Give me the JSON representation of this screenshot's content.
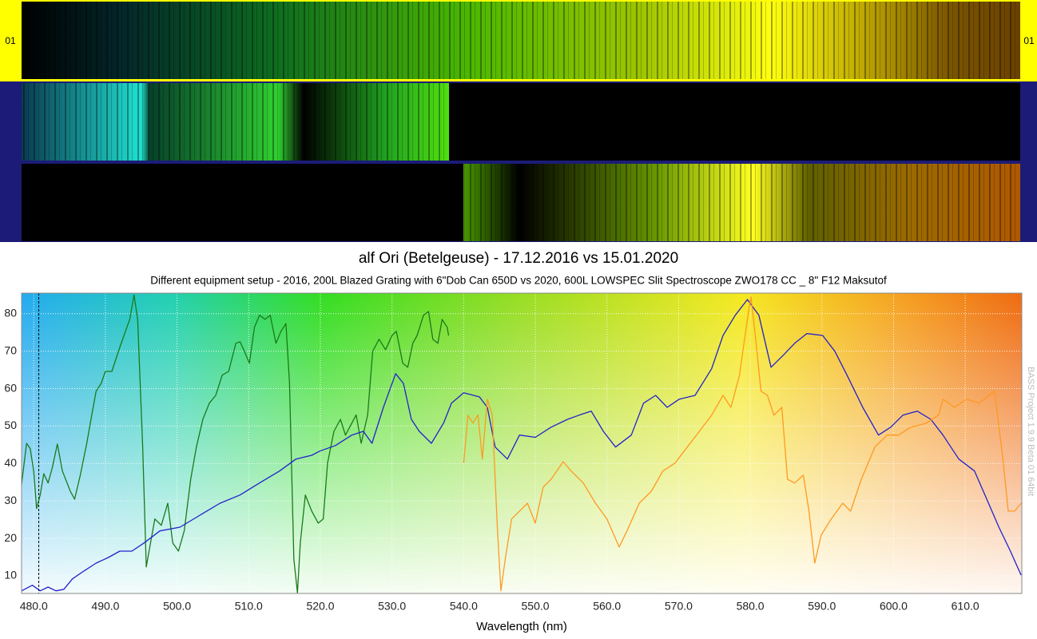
{
  "strip_label": "01",
  "watermark": "BASS Project 1.9.9 Beta 01 64bit",
  "chart_data": {
    "type": "line",
    "title": "alf Ori (Betelgeuse)  - 17.12.2016 vs 15.01.2020",
    "subtitle": "Different equipment setup - 2016, 200L Blazed Grating with 6\"Dob  Can 650D vs 2020, 600L LOWSPEC Slit Spectroscope  ZWO178 CC _ 8\" F12 Maksutof",
    "x_label": "Wavelength (nm)",
    "xlim": [
      478.3,
      617.9
    ],
    "ylim": [
      5.3,
      85.5
    ],
    "xticks": [
      {
        "value": 480,
        "label": "480.0"
      },
      {
        "value": 490,
        "label": "490.0"
      },
      {
        "value": 500,
        "label": "500.0"
      },
      {
        "value": 510,
        "label": "510.0"
      },
      {
        "value": 520,
        "label": "520.0"
      },
      {
        "value": 530,
        "label": "530.0"
      },
      {
        "value": 540,
        "label": "540.0"
      },
      {
        "value": 550,
        "label": "550.0"
      },
      {
        "value": 560,
        "label": "560.0"
      },
      {
        "value": 570,
        "label": "570.0"
      },
      {
        "value": 580,
        "label": "580.0"
      },
      {
        "value": 590,
        "label": "590.0"
      },
      {
        "value": 600,
        "label": "600.0"
      },
      {
        "value": 610,
        "label": "610.0"
      }
    ],
    "yticks": [
      10,
      20,
      30,
      40,
      50,
      60,
      70,
      80
    ],
    "grid": true,
    "vline_x": 480.7,
    "series": [
      {
        "color": "#1a7a1a",
        "x": [
          478.3,
          479,
          479.5,
          480,
          480.4,
          480.9,
          481.4,
          482,
          482.6,
          483.3,
          484,
          485.1,
          485.7,
          486.5,
          487.4,
          488.1,
          488.7,
          489.4,
          490,
          490.9,
          492,
          492.6,
          493.4,
          494,
          494.5,
          495.2,
          495.7,
          496.3,
          496.9,
          497.8,
          498.7,
          499.4,
          500.2,
          501,
          501.9,
          502.7,
          503.6,
          504.5,
          505.4,
          506.3,
          507.2,
          508.2,
          508.8,
          509.4,
          510.1,
          510.8,
          511.5,
          512.3,
          513,
          513.8,
          514.5,
          515.2,
          515.7,
          516.3,
          516.8,
          517.2,
          517.9,
          518.8,
          519.7,
          520.4,
          521,
          521.9,
          522.8,
          523.5,
          524.4,
          525,
          525.7,
          526.6,
          527.3,
          528.2,
          529.1,
          530,
          530.6,
          531.5,
          532.2,
          532.9,
          533.5,
          534.4,
          535.1,
          535.7,
          536.4,
          537,
          537.7,
          537.9
        ],
        "values": [
          34.5,
          45.4,
          44,
          38,
          28,
          31.6,
          37.3,
          34.8,
          39,
          45.2,
          38,
          32.6,
          30.5,
          36.9,
          45.4,
          53,
          59.3,
          61.4,
          64.6,
          64.6,
          71,
          74.2,
          78.5,
          85,
          78.5,
          44.4,
          12.4,
          18.8,
          25.2,
          23.5,
          29.4,
          18.8,
          16.6,
          22,
          35.8,
          44.4,
          51.8,
          56.1,
          58.2,
          63.6,
          64.6,
          72.1,
          72.5,
          70,
          66.8,
          76.4,
          79.6,
          78.5,
          79.6,
          72.1,
          75.3,
          77.4,
          61.4,
          14.5,
          5.5,
          18.8,
          31.6,
          27.3,
          24.1,
          25.2,
          40.1,
          48.6,
          51.8,
          47.6,
          50.8,
          53,
          45.4,
          53,
          70,
          73.2,
          70.4,
          74.2,
          75.3,
          66.8,
          65.7,
          72.1,
          74.2,
          79.6,
          80.6,
          73.2,
          72.1,
          78.5,
          76.4,
          74.2
        ]
      },
      {
        "color": "#2222cc",
        "x": [
          478.3,
          479.8,
          480.9,
          482,
          483.1,
          484.2,
          485.4,
          487,
          488.7,
          490.4,
          492,
          493.7,
          495.4,
          497.6,
          500.4,
          503.2,
          506,
          508.8,
          511.5,
          514.3,
          516.6,
          518.8,
          519.9,
          522.1,
          524.4,
          526,
          527.2,
          528.8,
          530.5,
          531.6,
          532.7,
          533.8,
          535.5,
          537.2,
          538.3,
          540,
          542.2,
          543.3,
          544.4,
          546.1,
          547.8,
          550,
          552.2,
          554.5,
          556.1,
          557.8,
          559.5,
          561.2,
          563.4,
          565.1,
          566.8,
          568.4,
          570.1,
          572.3,
          574.6,
          576.2,
          577.9,
          579.6,
          581.2,
          582.9,
          584.6,
          586.2,
          587.9,
          590.1,
          591.8,
          593.5,
          595.7,
          597.9,
          599.6,
          601.3,
          603.3,
          605.2,
          606.9,
          609.1,
          611.3,
          613,
          614.7,
          616.3,
          617.8
        ],
        "values": [
          6,
          7.5,
          6,
          7,
          6,
          6.4,
          9.2,
          11.3,
          13.4,
          14.9,
          16.6,
          16.6,
          18.8,
          22,
          23,
          26.2,
          29.4,
          31.6,
          34.8,
          38,
          41.2,
          42.2,
          43.3,
          44.8,
          47.6,
          48.6,
          45.4,
          55,
          64,
          61.4,
          51.8,
          48.6,
          45.4,
          50.8,
          56.1,
          58.9,
          57.8,
          55,
          44.4,
          41.2,
          47.6,
          47,
          49.7,
          51.8,
          52.9,
          54,
          48.6,
          44.4,
          47.6,
          56.1,
          58.2,
          55,
          57.2,
          58.2,
          65.3,
          74.2,
          79.6,
          83.8,
          79.6,
          65.7,
          68.9,
          72.1,
          74.7,
          74.2,
          70,
          63.6,
          55,
          47.6,
          49.7,
          52.9,
          54,
          51.8,
          47.6,
          41.2,
          38,
          30.5,
          23,
          16.6,
          10.2
        ]
      },
      {
        "color": "#ff9922",
        "x": [
          540,
          540.6,
          541.3,
          542,
          542.6,
          543.3,
          544,
          544.7,
          545.2,
          545.8,
          546.7,
          547.8,
          548.9,
          550,
          551.1,
          552.2,
          553.9,
          555,
          556.7,
          558.4,
          560,
          561.7,
          562.8,
          564.5,
          566.2,
          567.8,
          569.5,
          571.2,
          572.9,
          574.6,
          576.2,
          577.3,
          578.5,
          579.6,
          580.1,
          580.7,
          581.5,
          582.4,
          583.3,
          584.4,
          585.2,
          586.2,
          587.4,
          588.2,
          589,
          589.9,
          591.3,
          592.9,
          594,
          595.5,
          597.4,
          599.1,
          600.7,
          602.4,
          604.6,
          606.3,
          606.9,
          608.5,
          610.2,
          611.9,
          614.1,
          615.2,
          616,
          616.9,
          617.8
        ],
        "values": [
          40.1,
          52.9,
          50.8,
          53,
          41.2,
          57.2,
          52.9,
          23,
          6,
          14.5,
          25.2,
          27.3,
          29.4,
          24.1,
          33.7,
          35.8,
          40.5,
          38,
          34.8,
          29.4,
          25.2,
          17.7,
          22,
          29.4,
          32.6,
          38,
          40.1,
          44.4,
          48.6,
          52.9,
          58.2,
          55,
          63.6,
          78.5,
          84.5,
          74.2,
          59.3,
          58.2,
          52.9,
          55,
          35.8,
          34.8,
          36.9,
          27.3,
          13.4,
          20.9,
          25.2,
          29.4,
          27.3,
          35.8,
          44.4,
          47.6,
          47.6,
          49.7,
          50.8,
          53,
          57.2,
          55,
          57.2,
          56.1,
          59.3,
          42.2,
          27.3,
          27.3,
          29.4
        ]
      }
    ]
  }
}
